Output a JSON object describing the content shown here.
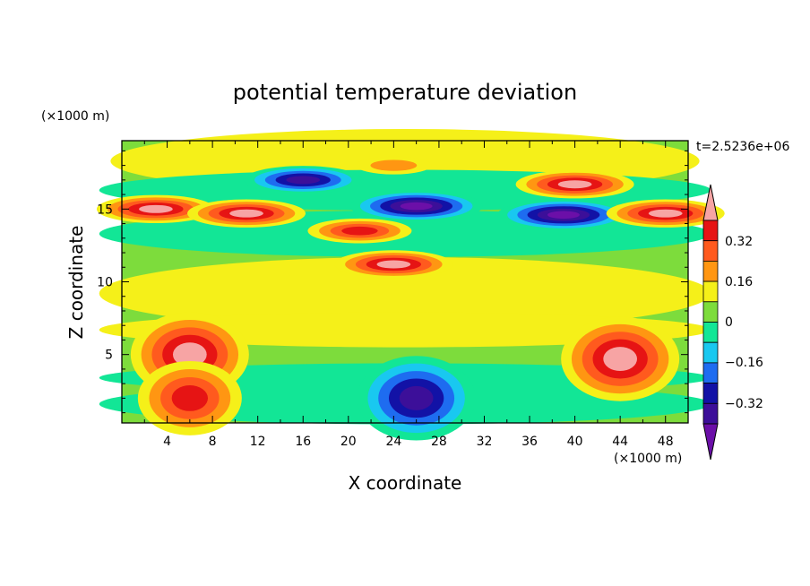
{
  "chart_data": {
    "type": "heatmap",
    "title": "potential temperature deviation",
    "xlabel": "X coordinate",
    "ylabel": "Z coordinate",
    "x_unit": "(×1000 m)",
    "y_unit": "(×1000 m)",
    "time_label": "t=2.5236e+06",
    "xlim": [
      0,
      50
    ],
    "ylim": [
      0.3,
      19.7
    ],
    "x_ticks": [
      "4",
      "8",
      "12",
      "16",
      "20",
      "24",
      "28",
      "32",
      "36",
      "40",
      "44",
      "48"
    ],
    "y_ticks": [
      "5",
      "10",
      "15"
    ],
    "colorbar": {
      "levels": [
        -0.48,
        -0.4,
        -0.32,
        -0.24,
        -0.16,
        -0.08,
        0,
        0.08,
        0.16,
        0.24,
        0.32,
        0.4
      ],
      "tick_labels": [
        "0.32",
        "0.16",
        "0",
        "−0.16",
        "−0.32"
      ],
      "colors": [
        "#6b0fa8",
        "#3c0f99",
        "#1212a6",
        "#1e6cf0",
        "#19c8f0",
        "#12e696",
        "#7ddc3c",
        "#f5f019",
        "#ff9612",
        "#ff5a1e",
        "#e61414",
        "#f7a4a4"
      ]
    },
    "features": [
      {
        "x": 16,
        "z": 17.0,
        "value": -0.4
      },
      {
        "x": 26,
        "z": 15.2,
        "value": -0.48
      },
      {
        "x": 39,
        "z": 14.6,
        "value": -0.48
      },
      {
        "x": 3,
        "z": 15.0,
        "value": 0.4
      },
      {
        "x": 11,
        "z": 14.7,
        "value": 0.4
      },
      {
        "x": 40,
        "z": 16.7,
        "value": 0.4
      },
      {
        "x": 48,
        "z": 14.7,
        "value": 0.4
      },
      {
        "x": 24,
        "z": 11.2,
        "value": 0.4
      },
      {
        "x": 21,
        "z": 13.5,
        "value": 0.32
      },
      {
        "x": 6,
        "z": 5.0,
        "value": 0.4
      },
      {
        "x": 44,
        "z": 4.7,
        "value": 0.4
      },
      {
        "x": 24,
        "z": 18.0,
        "value": 0.16
      },
      {
        "x": 26,
        "z": 2.0,
        "value": -0.4
      },
      {
        "x": 6,
        "z": 2.0,
        "value": 0.32
      }
    ]
  }
}
